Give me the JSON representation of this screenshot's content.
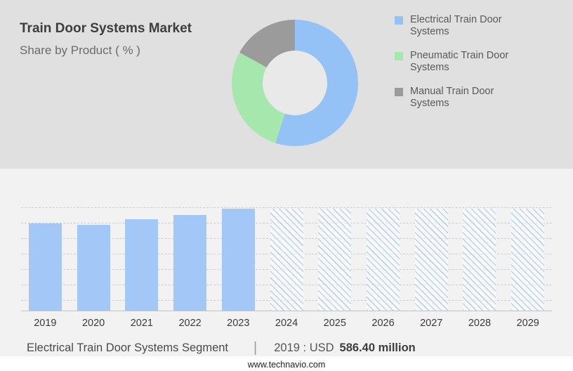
{
  "header": {
    "title": "Train Door Systems Market",
    "subtitle": "Share by Product ( % )"
  },
  "legend": [
    {
      "label": "Electrical Train Door Systems",
      "color": "#94c1f6"
    },
    {
      "label": "Pneumatic Train Door Systems",
      "color": "#a5e7ac"
    },
    {
      "label": "Manual Train Door Systems",
      "color": "#9b9b9b"
    }
  ],
  "chart_data": [
    {
      "type": "pie",
      "title": "Share by Product ( % )",
      "labels": [
        "Electrical Train Door Systems",
        "Pneumatic Train Door Systems",
        "Manual Train Door Systems"
      ],
      "values": [
        55,
        28,
        17
      ],
      "colors": [
        "#94c1f6",
        "#a5e7ac",
        "#9b9b9b"
      ],
      "legend_position": "right",
      "hole": true
    },
    {
      "type": "bar",
      "title": "Electrical Train Door Systems Segment, USD million",
      "categories": [
        "2019",
        "2020",
        "2021",
        "2022",
        "2023",
        "2024",
        "2025",
        "2026",
        "2027",
        "2028",
        "2029"
      ],
      "values": [
        586.4,
        577,
        615,
        643,
        685,
        685,
        685,
        685,
        685,
        685,
        685
      ],
      "ylim": [
        0,
        700
      ],
      "grid": true,
      "bar_color": "#a3c7f6",
      "hatch_color": "#b9d3f8",
      "forecast_from": "2024",
      "note": "2019 : USD 586.40 million"
    }
  ],
  "footnote": {
    "segment": "Electrical Train Door Systems Segment",
    "separator": "|",
    "year_label": "2019 : USD",
    "value": "586.40 million"
  },
  "footer": {
    "url": "www.technavio.com"
  }
}
